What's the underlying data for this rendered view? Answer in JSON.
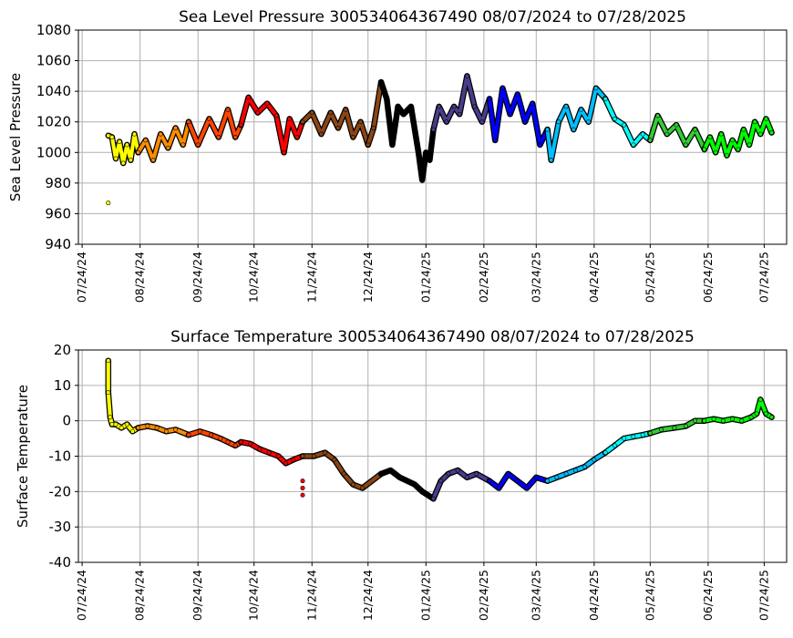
{
  "chart_data": [
    {
      "type": "scatter",
      "title": "Sea Level Pressure 300534064367490  08/07/2024 to 07/28/2025",
      "ylabel": "Sea Level Pressure",
      "xlabel": "",
      "ylim": [
        940,
        1080
      ],
      "yticks": [
        940,
        960,
        980,
        1000,
        1020,
        1040,
        1060,
        1080
      ],
      "xlim": [
        "2024-07-22",
        "2025-08-05"
      ],
      "xticks": [
        "2024-07-24",
        "2024-08-24",
        "2024-09-24",
        "2024-10-24",
        "2024-11-24",
        "2024-12-24",
        "2025-01-24",
        "2025-02-24",
        "2025-03-24",
        "2025-04-24",
        "2025-05-24",
        "2025-06-24",
        "2025-07-24"
      ],
      "xtick_labels": [
        "07/24/24",
        "08/24/24",
        "09/24/24",
        "10/24/24",
        "11/24/24",
        "12/24/24",
        "01/24/25",
        "02/24/25",
        "03/24/25",
        "04/24/25",
        "05/24/25",
        "06/24/25",
        "07/24/25"
      ],
      "grid": true,
      "legend": "none",
      "outliers": [
        {
          "x": "2024-08-07",
          "y": 967,
          "color": "#ffff00"
        }
      ],
      "series": [
        {
          "color": "#ffff00",
          "x": [
            "2024-08-07",
            "2024-08-09",
            "2024-08-11",
            "2024-08-13",
            "2024-08-15",
            "2024-08-17",
            "2024-08-19",
            "2024-08-21",
            "2024-08-23"
          ],
          "y": [
            1011,
            1010,
            996,
            1007,
            993,
            1005,
            995,
            1012,
            1000
          ]
        },
        {
          "color": "#ff8c00",
          "x": [
            "2024-08-23",
            "2024-08-27",
            "2024-08-31",
            "2024-09-04",
            "2024-09-08",
            "2024-09-12",
            "2024-09-16",
            "2024-09-19"
          ],
          "y": [
            1000,
            1008,
            995,
            1012,
            1003,
            1016,
            1005,
            1020
          ]
        },
        {
          "color": "#ff4500",
          "x": [
            "2024-09-19",
            "2024-09-24",
            "2024-09-30",
            "2024-10-05",
            "2024-10-10",
            "2024-10-14",
            "2024-10-17"
          ],
          "y": [
            1020,
            1005,
            1022,
            1010,
            1028,
            1010,
            1018
          ]
        },
        {
          "color": "#ff0000",
          "x": [
            "2024-10-17",
            "2024-10-21",
            "2024-10-26",
            "2024-10-31",
            "2024-11-05",
            "2024-11-09",
            "2024-11-12",
            "2024-11-16",
            "2024-11-19"
          ],
          "y": [
            1018,
            1036,
            1026,
            1032,
            1024,
            1000,
            1022,
            1010,
            1020
          ]
        },
        {
          "color": "#8b4513",
          "x": [
            "2024-11-19",
            "2024-11-24",
            "2024-11-29",
            "2024-12-04",
            "2024-12-08",
            "2024-12-12",
            "2024-12-16",
            "2024-12-20",
            "2024-12-24"
          ],
          "y": [
            1020,
            1026,
            1012,
            1026,
            1016,
            1028,
            1010,
            1020,
            1005
          ]
        },
        {
          "color": "#8b4513",
          "x": [
            "2024-12-24",
            "2024-12-27",
            "2024-12-31"
          ],
          "y": [
            1005,
            1016,
            1046
          ]
        },
        {
          "color": "#000000",
          "x": [
            "2024-12-31",
            "2025-01-03",
            "2025-01-06",
            "2025-01-09",
            "2025-01-12",
            "2025-01-16",
            "2025-01-20",
            "2025-01-22",
            "2025-01-24",
            "2025-01-26",
            "2025-01-28"
          ],
          "y": [
            1046,
            1035,
            1005,
            1030,
            1025,
            1030,
            1000,
            982,
            1000,
            995,
            1015
          ]
        },
        {
          "color": "#483d8b",
          "x": [
            "2025-01-28",
            "2025-01-31",
            "2025-02-04",
            "2025-02-08",
            "2025-02-11",
            "2025-02-15",
            "2025-02-19",
            "2025-02-23",
            "2025-02-27"
          ],
          "y": [
            1015,
            1030,
            1020,
            1030,
            1025,
            1050,
            1030,
            1020,
            1035
          ]
        },
        {
          "color": "#0000ff",
          "x": [
            "2025-02-27",
            "2025-03-02",
            "2025-03-06",
            "2025-03-10",
            "2025-03-14",
            "2025-03-18",
            "2025-03-22",
            "2025-03-26",
            "2025-03-30"
          ],
          "y": [
            1035,
            1008,
            1042,
            1025,
            1038,
            1020,
            1032,
            1005,
            1015
          ]
        },
        {
          "color": "#00bfff",
          "x": [
            "2025-03-30",
            "2025-04-01",
            "2025-04-05",
            "2025-04-09",
            "2025-04-13",
            "2025-04-17",
            "2025-04-21",
            "2025-04-25",
            "2025-04-30"
          ],
          "y": [
            1015,
            995,
            1020,
            1030,
            1015,
            1028,
            1020,
            1042,
            1035
          ]
        },
        {
          "color": "#00ffff",
          "x": [
            "2025-04-30",
            "2025-05-05",
            "2025-05-10",
            "2025-05-15",
            "2025-05-20",
            "2025-05-24"
          ],
          "y": [
            1035,
            1022,
            1018,
            1005,
            1012,
            1008
          ]
        },
        {
          "color": "#32cd32",
          "x": [
            "2025-05-24",
            "2025-05-28",
            "2025-06-02",
            "2025-06-07",
            "2025-06-12",
            "2025-06-17",
            "2025-06-22"
          ],
          "y": [
            1008,
            1024,
            1012,
            1018,
            1005,
            1015,
            1002
          ]
        },
        {
          "color": "#00ff00",
          "x": [
            "2025-06-22",
            "2025-06-25",
            "2025-06-28",
            "2025-07-01",
            "2025-07-04",
            "2025-07-07",
            "2025-07-10",
            "2025-07-13",
            "2025-07-16",
            "2025-07-19",
            "2025-07-22",
            "2025-07-25",
            "2025-07-28"
          ],
          "y": [
            1002,
            1010,
            1000,
            1012,
            998,
            1008,
            1002,
            1015,
            1005,
            1020,
            1012,
            1022,
            1013
          ]
        }
      ]
    },
    {
      "type": "scatter",
      "title": "Surface Temperature 300534064367490  08/07/2024 to 07/28/2025",
      "ylabel": "Surface Temperature",
      "xlabel": "",
      "ylim": [
        -40,
        20
      ],
      "yticks": [
        -40,
        -30,
        -20,
        -10,
        0,
        10,
        20
      ],
      "xlim": [
        "2024-07-22",
        "2025-08-05"
      ],
      "xticks": [
        "2024-07-24",
        "2024-08-24",
        "2024-09-24",
        "2024-10-24",
        "2024-11-24",
        "2024-12-24",
        "2025-01-24",
        "2025-02-24",
        "2025-03-24",
        "2025-04-24",
        "2025-05-24",
        "2025-06-24",
        "2025-07-24"
      ],
      "xtick_labels": [
        "07/24/24",
        "08/24/24",
        "09/24/24",
        "10/24/24",
        "11/24/24",
        "12/24/24",
        "01/24/25",
        "02/24/25",
        "03/24/25",
        "04/24/25",
        "05/24/25",
        "06/24/25",
        "07/24/25"
      ],
      "grid": true,
      "legend": "none",
      "outliers": [
        {
          "x": "2024-11-19",
          "y": -17,
          "color": "#ff0000"
        },
        {
          "x": "2024-11-19",
          "y": -19,
          "color": "#ff0000"
        },
        {
          "x": "2024-11-19",
          "y": -21,
          "color": "#ff0000"
        }
      ],
      "series": [
        {
          "color": "#ffff00",
          "x": [
            "2024-08-07",
            "2024-08-07",
            "2024-08-08",
            "2024-08-09",
            "2024-08-11",
            "2024-08-14",
            "2024-08-17",
            "2024-08-20",
            "2024-08-23"
          ],
          "y": [
            17,
            8,
            1,
            -1,
            -1,
            -2,
            -1,
            -3,
            -2
          ]
        },
        {
          "color": "#ff8c00",
          "x": [
            "2024-08-23",
            "2024-08-28",
            "2024-09-02",
            "2024-09-07",
            "2024-09-12",
            "2024-09-19"
          ],
          "y": [
            -2,
            -1.5,
            -2,
            -3,
            -2.5,
            -4
          ]
        },
        {
          "color": "#ff4500",
          "x": [
            "2024-09-19",
            "2024-09-25",
            "2024-10-01",
            "2024-10-06",
            "2024-10-10",
            "2024-10-14",
            "2024-10-17"
          ],
          "y": [
            -4,
            -3,
            -4,
            -5,
            -6,
            -7,
            -6
          ]
        },
        {
          "color": "#ff0000",
          "x": [
            "2024-10-17",
            "2024-10-22",
            "2024-10-27",
            "2024-11-01",
            "2024-11-06",
            "2024-11-10",
            "2024-11-14",
            "2024-11-19"
          ],
          "y": [
            -6,
            -6.5,
            -8,
            -9,
            -10,
            -12,
            -11,
            -10
          ]
        },
        {
          "color": "#8b4513",
          "x": [
            "2024-11-19",
            "2024-11-25",
            "2024-12-01",
            "2024-12-06",
            "2024-12-11",
            "2024-12-16",
            "2024-12-21",
            "2024-12-31"
          ],
          "y": [
            -10,
            -10,
            -9,
            -11,
            -15,
            -18,
            -19,
            -15
          ]
        },
        {
          "color": "#000000",
          "x": [
            "2024-12-31",
            "2025-01-05",
            "2025-01-10",
            "2025-01-14",
            "2025-01-18",
            "2025-01-22",
            "2025-01-28"
          ],
          "y": [
            -15,
            -14,
            -16,
            -17,
            -18,
            -20,
            -22
          ]
        },
        {
          "color": "#483d8b",
          "x": [
            "2025-01-28",
            "2025-02-01",
            "2025-02-05",
            "2025-02-10",
            "2025-02-15",
            "2025-02-20",
            "2025-02-27"
          ],
          "y": [
            -22,
            -17,
            -15,
            -14,
            -16,
            -15,
            -17
          ]
        },
        {
          "color": "#0000ff",
          "x": [
            "2025-02-27",
            "2025-03-04",
            "2025-03-09",
            "2025-03-14",
            "2025-03-19",
            "2025-03-24",
            "2025-03-30"
          ],
          "y": [
            -17,
            -19,
            -15,
            -17,
            -19,
            -16,
            -17
          ]
        },
        {
          "color": "#00bfff",
          "x": [
            "2025-03-30",
            "2025-04-04",
            "2025-04-09",
            "2025-04-14",
            "2025-04-19",
            "2025-04-24",
            "2025-04-30"
          ],
          "y": [
            -17,
            -16,
            -15,
            -14,
            -13,
            -11,
            -9
          ]
        },
        {
          "color": "#00ffff",
          "x": [
            "2025-04-30",
            "2025-05-05",
            "2025-05-10",
            "2025-05-15",
            "2025-05-20",
            "2025-05-24"
          ],
          "y": [
            -9,
            -7,
            -5,
            -4.5,
            -4,
            -3.5
          ]
        },
        {
          "color": "#32cd32",
          "x": [
            "2025-05-24",
            "2025-05-30",
            "2025-06-06",
            "2025-06-12",
            "2025-06-17",
            "2025-06-22"
          ],
          "y": [
            -3.5,
            -2.5,
            -2,
            -1.5,
            0,
            0
          ]
        },
        {
          "color": "#00ff00",
          "x": [
            "2025-06-22",
            "2025-06-27",
            "2025-07-02",
            "2025-07-07",
            "2025-07-12",
            "2025-07-17",
            "2025-07-20",
            "2025-07-22",
            "2025-07-25",
            "2025-07-28"
          ],
          "y": [
            0,
            0.5,
            0,
            0.5,
            0,
            1,
            2,
            6,
            2,
            1
          ]
        }
      ]
    }
  ]
}
